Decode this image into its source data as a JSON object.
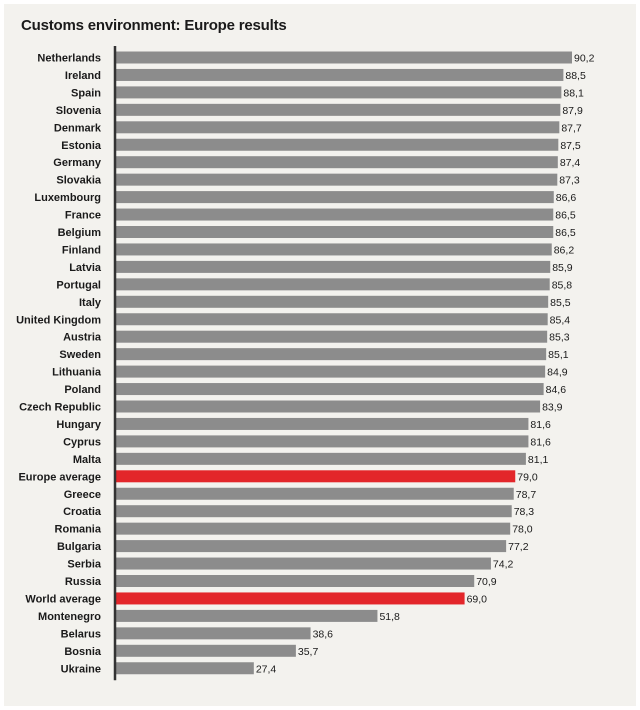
{
  "chart_data": {
    "type": "bar",
    "orientation": "horizontal",
    "title": "Customs environment: Europe results",
    "xlim": [
      0,
      90.2
    ],
    "categories": [
      "Netherlands",
      "Ireland",
      "Spain",
      "Slovenia",
      "Denmark",
      "Estonia",
      "Germany",
      "Slovakia",
      "Luxembourg",
      "France",
      "Belgium",
      "Finland",
      "Latvia",
      "Portugal",
      "Italy",
      "United Kingdom",
      "Austria",
      "Sweden",
      "Lithuania",
      "Poland",
      "Czech Republic",
      "Hungary",
      "Cyprus",
      "Malta",
      "Europe average",
      "Greece",
      "Croatia",
      "Romania",
      "Bulgaria",
      "Serbia",
      "Russia",
      "World average",
      "Montenegro",
      "Belarus",
      "Bosnia",
      "Ukraine"
    ],
    "values": [
      90.2,
      88.5,
      88.1,
      87.9,
      87.7,
      87.5,
      87.4,
      87.3,
      86.6,
      86.5,
      86.5,
      86.2,
      85.9,
      85.8,
      85.5,
      85.4,
      85.3,
      85.1,
      84.9,
      84.6,
      83.9,
      81.6,
      81.6,
      81.1,
      79.0,
      78.7,
      78.3,
      78.0,
      77.2,
      74.2,
      70.9,
      69.0,
      51.8,
      38.6,
      35.7,
      27.4
    ],
    "value_labels": [
      "90,2",
      "88,5",
      "88,1",
      "87,9",
      "87,7",
      "87,5",
      "87,4",
      "87,3",
      "86,6",
      "86,5",
      "86,5",
      "86,2",
      "85,9",
      "85,8",
      "85,5",
      "85,4",
      "85,3",
      "85,1",
      "84,9",
      "84,6",
      "83,9",
      "81,6",
      "81,6",
      "81,1",
      "79,0",
      "78,7",
      "78,3",
      "78,0",
      "77,2",
      "74,2",
      "70,9",
      "69,0",
      "51,8",
      "38,6",
      "35,7",
      "27,4"
    ],
    "highlighted": [
      "Europe average",
      "World average"
    ],
    "colors": {
      "bar": "#8c8c8c",
      "highlight": "#e3262a",
      "axis": "#333333",
      "background": "#f3f2ee"
    },
    "grid": false
  }
}
